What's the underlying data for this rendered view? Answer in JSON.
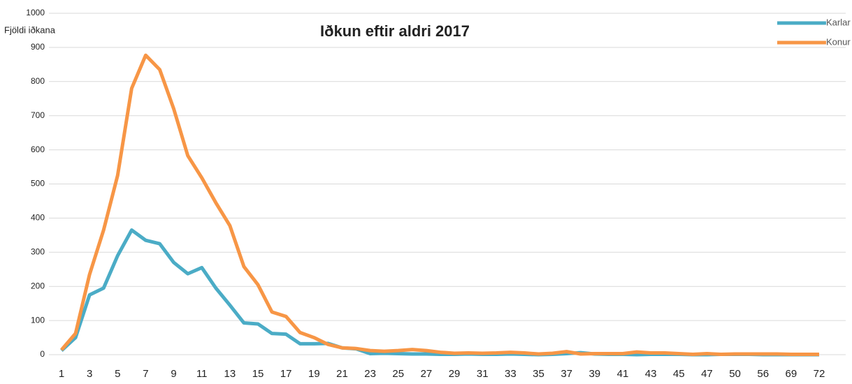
{
  "chart_data": {
    "type": "line",
    "title": "Iðkun eftir aldri 2017",
    "y_label": "Fjöldi iðkana",
    "categories": [
      1,
      null,
      3,
      null,
      5,
      null,
      7,
      null,
      9,
      null,
      11,
      null,
      13,
      null,
      15,
      null,
      17,
      null,
      19,
      null,
      21,
      null,
      23,
      null,
      25,
      null,
      27,
      null,
      29,
      null,
      31,
      null,
      33,
      null,
      35,
      null,
      37,
      null,
      39,
      null,
      41,
      null,
      43,
      null,
      45,
      null,
      47,
      null,
      50,
      null,
      56,
      null,
      69,
      null,
      72
    ],
    "series": [
      {
        "name": "Karlar",
        "color": "#4bacc6",
        "values": [
          12,
          50,
          175,
          195,
          290,
          365,
          335,
          325,
          270,
          237,
          255,
          195,
          145,
          93,
          90,
          62,
          60,
          32,
          32,
          33,
          20,
          17,
          3,
          4,
          3,
          2,
          2,
          1,
          1,
          2,
          1,
          1,
          2,
          1,
          0,
          1,
          3,
          6,
          2,
          1,
          1,
          0,
          1,
          1,
          1,
          0,
          0,
          1,
          1,
          1,
          0,
          0,
          0,
          0,
          0
        ]
      },
      {
        "name": "Konur",
        "color": "#f79646",
        "values": [
          14,
          62,
          235,
          365,
          525,
          780,
          877,
          835,
          720,
          583,
          518,
          445,
          378,
          258,
          205,
          125,
          112,
          65,
          50,
          30,
          20,
          18,
          12,
          10,
          12,
          15,
          12,
          7,
          4,
          5,
          4,
          5,
          7,
          5,
          2,
          4,
          9,
          2,
          3,
          3,
          3,
          8,
          5,
          5,
          3,
          1,
          3,
          1,
          2,
          2,
          2,
          2,
          1,
          1,
          1
        ]
      }
    ],
    "ylim": [
      0,
      1000
    ],
    "yticks": [
      0,
      100,
      200,
      300,
      400,
      500,
      600,
      700,
      800,
      900,
      1000
    ],
    "grid": true,
    "legend": "top-right"
  }
}
